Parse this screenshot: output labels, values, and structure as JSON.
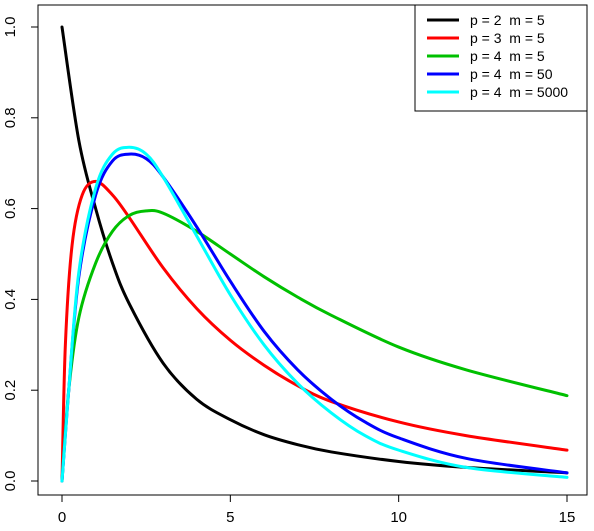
{
  "chart_data": {
    "type": "line",
    "title": "",
    "xlabel": "",
    "ylabel": "",
    "xlim": [
      0,
      15
    ],
    "ylim": [
      0,
      1
    ],
    "x_ticks": [
      0,
      5,
      10,
      15
    ],
    "x_tick_labels": [
      "0",
      "5",
      "10",
      "15"
    ],
    "y_ticks": [
      0,
      0.2,
      0.4,
      0.6,
      0.8,
      1
    ],
    "y_tick_labels": [
      "0.0",
      "0.2",
      "0.4",
      "0.6",
      "0.8",
      "1.0"
    ],
    "grid": false,
    "legend_position": "top-right",
    "series": [
      {
        "name": "p = 2  m = 5",
        "color": "#000000",
        "points": [
          [
            0,
            1.0
          ],
          [
            0.5,
            0.75
          ],
          [
            1,
            0.6
          ],
          [
            1.5,
            0.48
          ],
          [
            2,
            0.39
          ],
          [
            3,
            0.26
          ],
          [
            4,
            0.18
          ],
          [
            5,
            0.135
          ],
          [
            6,
            0.102
          ],
          [
            7,
            0.08
          ],
          [
            8,
            0.064
          ],
          [
            10,
            0.043
          ],
          [
            12,
            0.03
          ],
          [
            15,
            0.018
          ]
        ]
      },
      {
        "name": "p = 3  m = 5",
        "color": "#ff0000",
        "points": [
          [
            0,
            0.0
          ],
          [
            0.1,
            0.3
          ],
          [
            0.3,
            0.52
          ],
          [
            0.6,
            0.63
          ],
          [
            1,
            0.66
          ],
          [
            1.5,
            0.63
          ],
          [
            2,
            0.58
          ],
          [
            3,
            0.47
          ],
          [
            4,
            0.38
          ],
          [
            5,
            0.31
          ],
          [
            6,
            0.255
          ],
          [
            7,
            0.21
          ],
          [
            8,
            0.175
          ],
          [
            10,
            0.13
          ],
          [
            12,
            0.1
          ],
          [
            15,
            0.068
          ]
        ]
      },
      {
        "name": "p = 4  m = 5",
        "color": "#00c000",
        "points": [
          [
            0,
            0.0
          ],
          [
            0.2,
            0.2
          ],
          [
            0.5,
            0.36
          ],
          [
            1,
            0.48
          ],
          [
            1.5,
            0.55
          ],
          [
            2,
            0.585
          ],
          [
            2.5,
            0.595
          ],
          [
            3,
            0.59
          ],
          [
            4,
            0.55
          ],
          [
            5,
            0.5
          ],
          [
            6,
            0.45
          ],
          [
            7,
            0.405
          ],
          [
            8,
            0.365
          ],
          [
            10,
            0.295
          ],
          [
            12,
            0.245
          ],
          [
            15,
            0.188
          ]
        ]
      },
      {
        "name": "p = 4  m = 50",
        "color": "#0000ff",
        "points": [
          [
            0,
            0.0
          ],
          [
            0.2,
            0.2
          ],
          [
            0.5,
            0.45
          ],
          [
            1,
            0.63
          ],
          [
            1.5,
            0.705
          ],
          [
            2,
            0.72
          ],
          [
            2.5,
            0.71
          ],
          [
            3,
            0.67
          ],
          [
            4,
            0.56
          ],
          [
            5,
            0.44
          ],
          [
            6,
            0.33
          ],
          [
            7,
            0.245
          ],
          [
            8,
            0.18
          ],
          [
            9,
            0.13
          ],
          [
            10,
            0.095
          ],
          [
            12,
            0.05
          ],
          [
            15,
            0.018
          ]
        ]
      },
      {
        "name": "p = 4  m = 5000",
        "color": "#00ffff",
        "points": [
          [
            0,
            0.0
          ],
          [
            0.2,
            0.2
          ],
          [
            0.5,
            0.46
          ],
          [
            1,
            0.645
          ],
          [
            1.5,
            0.72
          ],
          [
            2,
            0.735
          ],
          [
            2.5,
            0.72
          ],
          [
            3,
            0.67
          ],
          [
            4,
            0.54
          ],
          [
            5,
            0.41
          ],
          [
            6,
            0.3
          ],
          [
            7,
            0.215
          ],
          [
            8,
            0.15
          ],
          [
            9,
            0.1
          ],
          [
            10,
            0.068
          ],
          [
            12,
            0.03
          ],
          [
            15,
            0.008
          ]
        ]
      }
    ]
  }
}
